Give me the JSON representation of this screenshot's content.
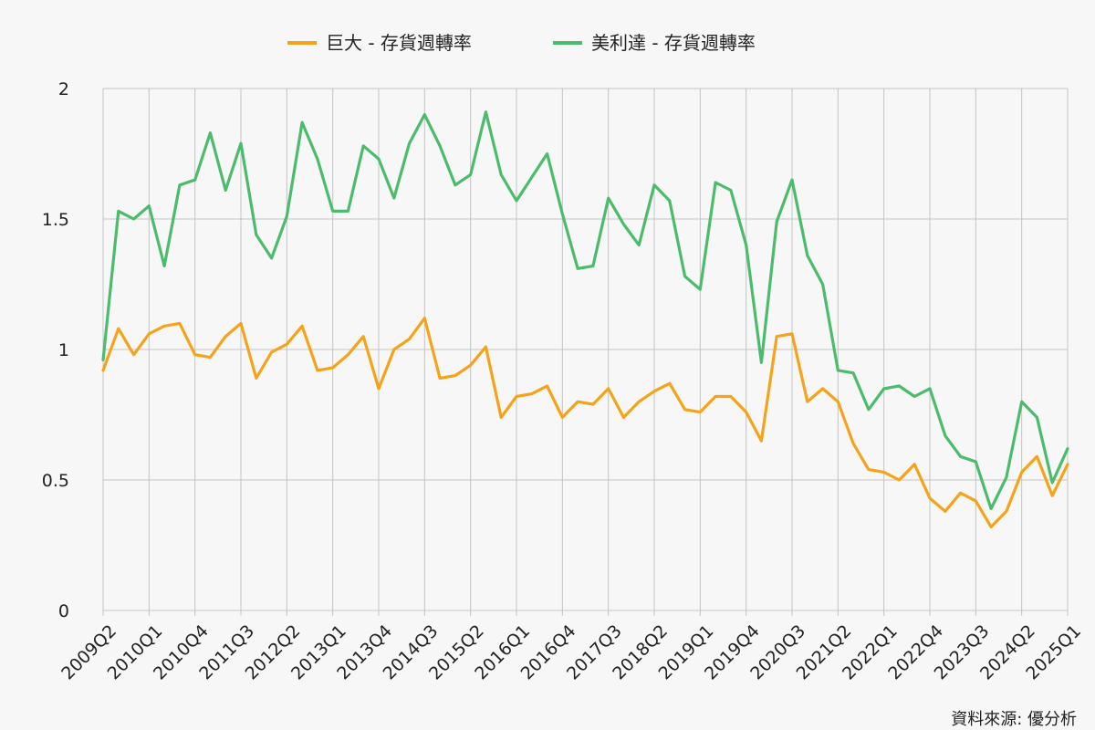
{
  "chart_data": {
    "type": "line",
    "title": "",
    "xlabel": "",
    "ylabel": "",
    "ylim": [
      0,
      2
    ],
    "yticks": [
      "0",
      "0.5",
      "1",
      "1.5",
      "2"
    ],
    "grid": true,
    "legend_position": "top-center",
    "source": "資料來源: 優分析",
    "categories": [
      "2009Q2",
      "2009Q3",
      "2009Q4",
      "2010Q1",
      "2010Q2",
      "2010Q3",
      "2010Q4",
      "2011Q1",
      "2011Q2",
      "2011Q3",
      "2011Q4",
      "2012Q1",
      "2012Q2",
      "2012Q3",
      "2012Q4",
      "2013Q1",
      "2013Q2",
      "2013Q3",
      "2013Q4",
      "2014Q1",
      "2014Q2",
      "2014Q3",
      "2014Q4",
      "2015Q1",
      "2015Q2",
      "2015Q3",
      "2015Q4",
      "2016Q1",
      "2016Q2",
      "2016Q3",
      "2016Q4",
      "2017Q1",
      "2017Q2",
      "2017Q3",
      "2017Q4",
      "2018Q1",
      "2018Q2",
      "2018Q3",
      "2018Q4",
      "2019Q1",
      "2019Q2",
      "2019Q3",
      "2019Q4",
      "2020Q1",
      "2020Q2",
      "2020Q3",
      "2020Q4",
      "2021Q1",
      "2021Q2",
      "2021Q3",
      "2021Q4",
      "2022Q1",
      "2022Q2",
      "2022Q3",
      "2022Q4",
      "2023Q1",
      "2023Q2",
      "2023Q3",
      "2023Q4",
      "2024Q1",
      "2024Q2",
      "2024Q3",
      "2024Q4",
      "2025Q1"
    ],
    "x_tick_labels": [
      "2009Q2",
      "2010Q1",
      "2010Q4",
      "2011Q3",
      "2012Q2",
      "2013Q1",
      "2013Q4",
      "2014Q3",
      "2015Q2",
      "2016Q1",
      "2016Q4",
      "2017Q3",
      "2018Q2",
      "2019Q1",
      "2019Q4",
      "2020Q3",
      "2021Q2",
      "2022Q1",
      "2022Q4",
      "2023Q3",
      "2024Q2",
      "2025Q1"
    ],
    "series": [
      {
        "name": "巨大 - 存貨週轉率",
        "color": "#f5a31a",
        "values": [
          0.92,
          1.08,
          0.98,
          1.06,
          1.09,
          1.1,
          0.98,
          0.97,
          1.05,
          1.1,
          0.89,
          0.99,
          1.02,
          1.09,
          0.92,
          0.93,
          0.98,
          1.05,
          0.85,
          1.0,
          1.04,
          1.12,
          0.89,
          0.9,
          0.94,
          1.01,
          0.74,
          0.82,
          0.83,
          0.86,
          0.74,
          0.8,
          0.79,
          0.85,
          0.74,
          0.8,
          0.84,
          0.87,
          0.77,
          0.76,
          0.82,
          0.82,
          0.76,
          0.65,
          1.05,
          1.06,
          0.8,
          0.85,
          0.8,
          0.64,
          0.54,
          0.53,
          0.5,
          0.56,
          0.43,
          0.38,
          0.45,
          0.42,
          0.32,
          0.38,
          0.53,
          0.59,
          0.44,
          0.56
        ]
      },
      {
        "name": "美利達 - 存貨週轉率",
        "color": "#4cbb6c",
        "values": [
          0.96,
          1.53,
          1.5,
          1.55,
          1.32,
          1.63,
          1.65,
          1.83,
          1.61,
          1.79,
          1.44,
          1.35,
          1.51,
          1.87,
          1.73,
          1.53,
          1.53,
          1.78,
          1.73,
          1.58,
          1.79,
          1.9,
          1.78,
          1.63,
          1.67,
          1.91,
          1.67,
          1.57,
          1.66,
          1.75,
          1.52,
          1.31,
          1.32,
          1.58,
          1.48,
          1.4,
          1.63,
          1.57,
          1.28,
          1.23,
          1.64,
          1.61,
          1.4,
          0.95,
          1.49,
          1.65,
          1.36,
          1.25,
          0.92,
          0.91,
          0.77,
          0.85,
          0.86,
          0.82,
          0.85,
          0.67,
          0.59,
          0.57,
          0.39,
          0.51,
          0.8,
          0.74,
          0.49,
          0.62
        ]
      }
    ]
  }
}
